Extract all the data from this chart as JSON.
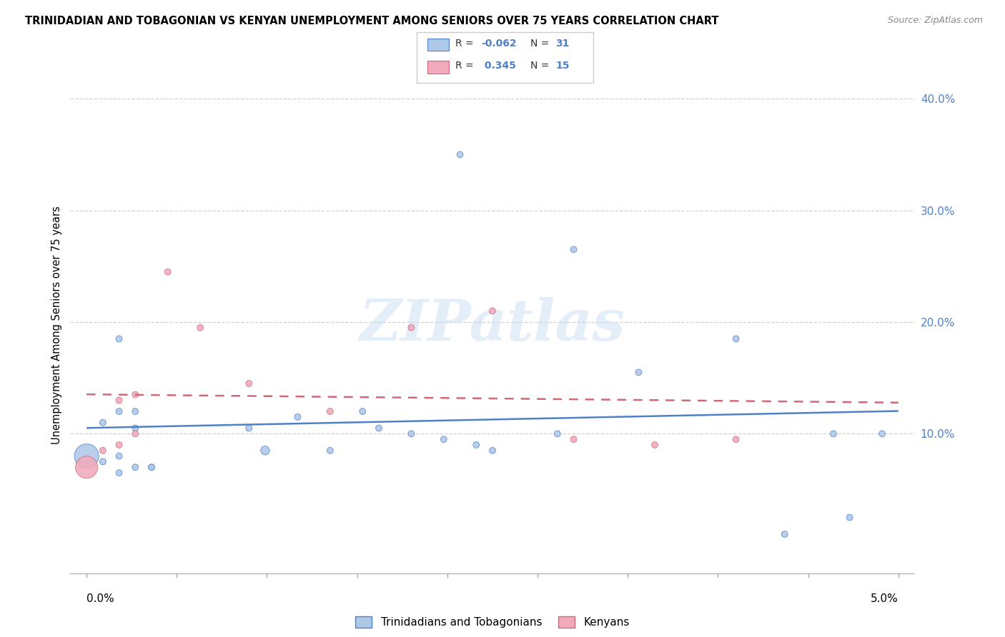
{
  "title": "TRINIDADIAN AND TOBAGONIAN VS KENYAN UNEMPLOYMENT AMONG SENIORS OVER 75 YEARS CORRELATION CHART",
  "source": "Source: ZipAtlas.com",
  "ylabel": "Unemployment Among Seniors over 75 years",
  "blue_color": "#aec8e8",
  "pink_color": "#f0aabb",
  "line_blue": "#5080c8",
  "line_pink": "#d06878",
  "watermark": "ZIPatlas",
  "trinidad_x": [
    0.0,
    0.001,
    0.001,
    0.002,
    0.002,
    0.002,
    0.002,
    0.003,
    0.003,
    0.003,
    0.004,
    0.004,
    0.01,
    0.011,
    0.013,
    0.015,
    0.017,
    0.018,
    0.02,
    0.022,
    0.023,
    0.024,
    0.025,
    0.029,
    0.03,
    0.034,
    0.04,
    0.043,
    0.046,
    0.047,
    0.049
  ],
  "trinidad_y": [
    0.08,
    0.075,
    0.11,
    0.065,
    0.08,
    0.12,
    0.185,
    0.12,
    0.105,
    0.07,
    0.07,
    0.07,
    0.105,
    0.085,
    0.115,
    0.085,
    0.12,
    0.105,
    0.1,
    0.095,
    0.35,
    0.09,
    0.085,
    0.1,
    0.265,
    0.155,
    0.185,
    0.01,
    0.1,
    0.025,
    0.1
  ],
  "trinidad_sizes": [
    600,
    40,
    40,
    40,
    40,
    40,
    40,
    40,
    40,
    40,
    40,
    40,
    40,
    80,
    40,
    40,
    40,
    40,
    40,
    40,
    40,
    40,
    40,
    40,
    40,
    40,
    40,
    40,
    40,
    40,
    40
  ],
  "kenyan_x": [
    0.0,
    0.001,
    0.002,
    0.002,
    0.003,
    0.003,
    0.005,
    0.007,
    0.01,
    0.015,
    0.02,
    0.025,
    0.03,
    0.035,
    0.04
  ],
  "kenyan_y": [
    0.07,
    0.085,
    0.13,
    0.09,
    0.135,
    0.1,
    0.245,
    0.195,
    0.145,
    0.12,
    0.195,
    0.21,
    0.095,
    0.09,
    0.095
  ],
  "kenyan_sizes": [
    500,
    40,
    40,
    40,
    40,
    40,
    40,
    40,
    40,
    40,
    40,
    40,
    40,
    40,
    40
  ],
  "xlim": [
    -0.001,
    0.051
  ],
  "ylim": [
    -0.025,
    0.42
  ],
  "yticks": [
    0.1,
    0.2,
    0.3,
    0.4
  ],
  "ytick_labels": [
    "10.0%",
    "20.0%",
    "30.0%",
    "40.0%"
  ],
  "xtick_left_label": "0.0%",
  "xtick_right_label": "5.0%",
  "blue_r_val": "-0.062",
  "blue_n_val": "31",
  "pink_r_val": "0.345",
  "pink_n_val": "15"
}
